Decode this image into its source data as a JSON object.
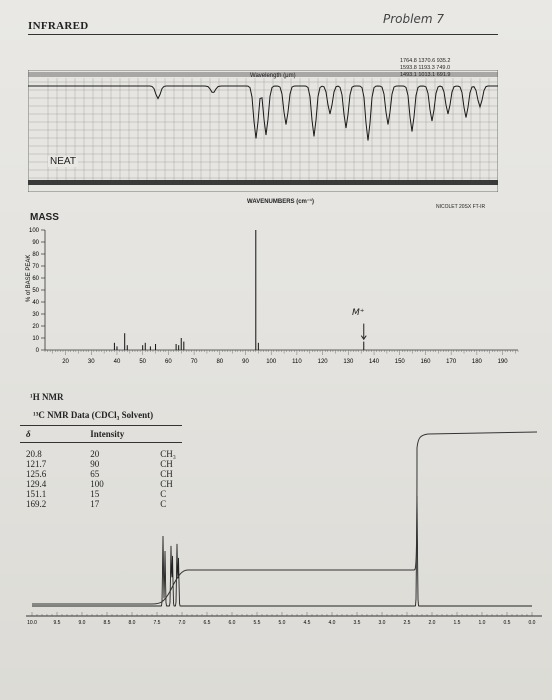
{
  "handwritten": "Problem 7",
  "ir": {
    "heading": "INFRARED",
    "sample": "NEAT",
    "wavelength_label": "Wavelength (μm)",
    "wavenumber_label": "WAVENUMBERS (cm⁻¹)",
    "peak_rows": [
      "1764.8  1370.6  935.2",
      "1593.8  1193.3  749.0",
      "1493.1  1013.1  691.9"
    ],
    "instrument": "NICOLET 20SX FT-IR"
  },
  "ms": {
    "heading": "MASS",
    "y_axis_label": "% of BASE PEAK",
    "molecular_ion_label": "M⁺",
    "y_ticks": [
      0,
      10,
      20,
      30,
      40,
      50,
      60,
      70,
      80,
      90,
      100
    ],
    "x_ticks": [
      20,
      30,
      40,
      50,
      60,
      70,
      80,
      90,
      100,
      110,
      120,
      130,
      140,
      150,
      160,
      170,
      180,
      190
    ],
    "peaks": [
      {
        "mz": 39,
        "intensity": 6
      },
      {
        "mz": 40,
        "intensity": 3
      },
      {
        "mz": 43,
        "intensity": 14
      },
      {
        "mz": 44,
        "intensity": 4
      },
      {
        "mz": 50,
        "intensity": 4
      },
      {
        "mz": 51,
        "intensity": 6
      },
      {
        "mz": 53,
        "intensity": 3
      },
      {
        "mz": 55,
        "intensity": 5
      },
      {
        "mz": 63,
        "intensity": 5
      },
      {
        "mz": 64,
        "intensity": 4
      },
      {
        "mz": 65,
        "intensity": 10
      },
      {
        "mz": 66,
        "intensity": 7
      },
      {
        "mz": 94,
        "intensity": 100
      },
      {
        "mz": 95,
        "intensity": 6
      },
      {
        "mz": 136,
        "intensity": 7
      }
    ]
  },
  "hnmr": {
    "heading": "¹H NMR",
    "ppm_ticks": [
      "10.0",
      "9.5",
      "9.0",
      "8.5",
      "8.0",
      "7.5",
      "7.0",
      "6.5",
      "6.0",
      "5.5",
      "5.0",
      "4.5",
      "4.0",
      "3.5",
      "3.0",
      "2.5",
      "2.0",
      "1.5",
      "1.0",
      "0.5",
      "0.0"
    ]
  },
  "cnmr": {
    "title": "¹³C NMR Data (CDCl₃ Solvent)",
    "headers": [
      "δ",
      "Intensity",
      ""
    ],
    "rows": [
      {
        "delta": "20.8",
        "intensity": "20",
        "type": "CH₃"
      },
      {
        "delta": "121.7",
        "intensity": "90",
        "type": "CH"
      },
      {
        "delta": "125.6",
        "intensity": "65",
        "type": "CH"
      },
      {
        "delta": "129.4",
        "intensity": "100",
        "type": "CH"
      },
      {
        "delta": "151.1",
        "intensity": "15",
        "type": "C"
      },
      {
        "delta": "169.2",
        "intensity": "17",
        "type": "C"
      }
    ]
  }
}
